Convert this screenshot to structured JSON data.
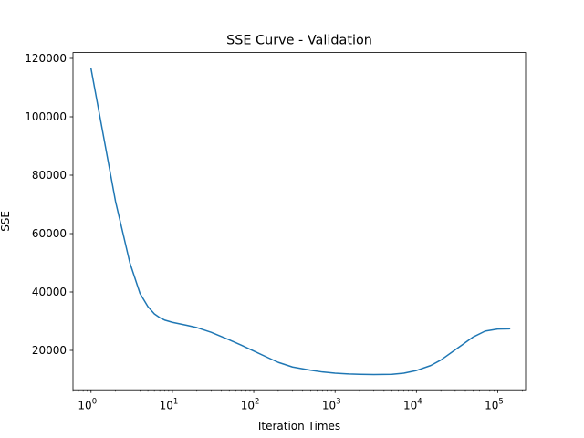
{
  "chart_data": {
    "type": "line",
    "title": "SSE Curve - Validation",
    "xlabel": "Iteration Times",
    "ylabel": "SSE",
    "x_scale": "log",
    "xlim": [
      0.6,
      220000
    ],
    "ylim": [
      6500,
      122000
    ],
    "grid": false,
    "legend": "none",
    "x_ticks": [
      {
        "base": "10",
        "exp": "0",
        "value": 1
      },
      {
        "base": "10",
        "exp": "1",
        "value": 10
      },
      {
        "base": "10",
        "exp": "2",
        "value": 100
      },
      {
        "base": "10",
        "exp": "3",
        "value": 1000
      },
      {
        "base": "10",
        "exp": "4",
        "value": 10000
      },
      {
        "base": "10",
        "exp": "5",
        "value": 100000
      }
    ],
    "y_ticks": [
      "20000",
      "40000",
      "60000",
      "80000",
      "100000",
      "120000"
    ],
    "series": [
      {
        "color": "#1f77b4",
        "x": [
          1,
          2,
          3,
          4,
          5,
          6,
          7,
          8,
          10,
          15,
          20,
          30,
          50,
          70,
          100,
          150,
          200,
          300,
          500,
          700,
          1000,
          1500,
          2000,
          3000,
          5000,
          7000,
          10000,
          15000,
          20000,
          30000,
          50000,
          70000,
          100000,
          140000
        ],
        "y": [
          116500,
          71000,
          50000,
          39500,
          35000,
          32500,
          31200,
          30400,
          29600,
          28600,
          27800,
          26200,
          23600,
          21800,
          19800,
          17500,
          15900,
          14300,
          13200,
          12600,
          12200,
          11900,
          11800,
          11700,
          11800,
          12200,
          13100,
          14800,
          16700,
          20200,
          24600,
          26600,
          27300,
          27400
        ]
      }
    ]
  }
}
